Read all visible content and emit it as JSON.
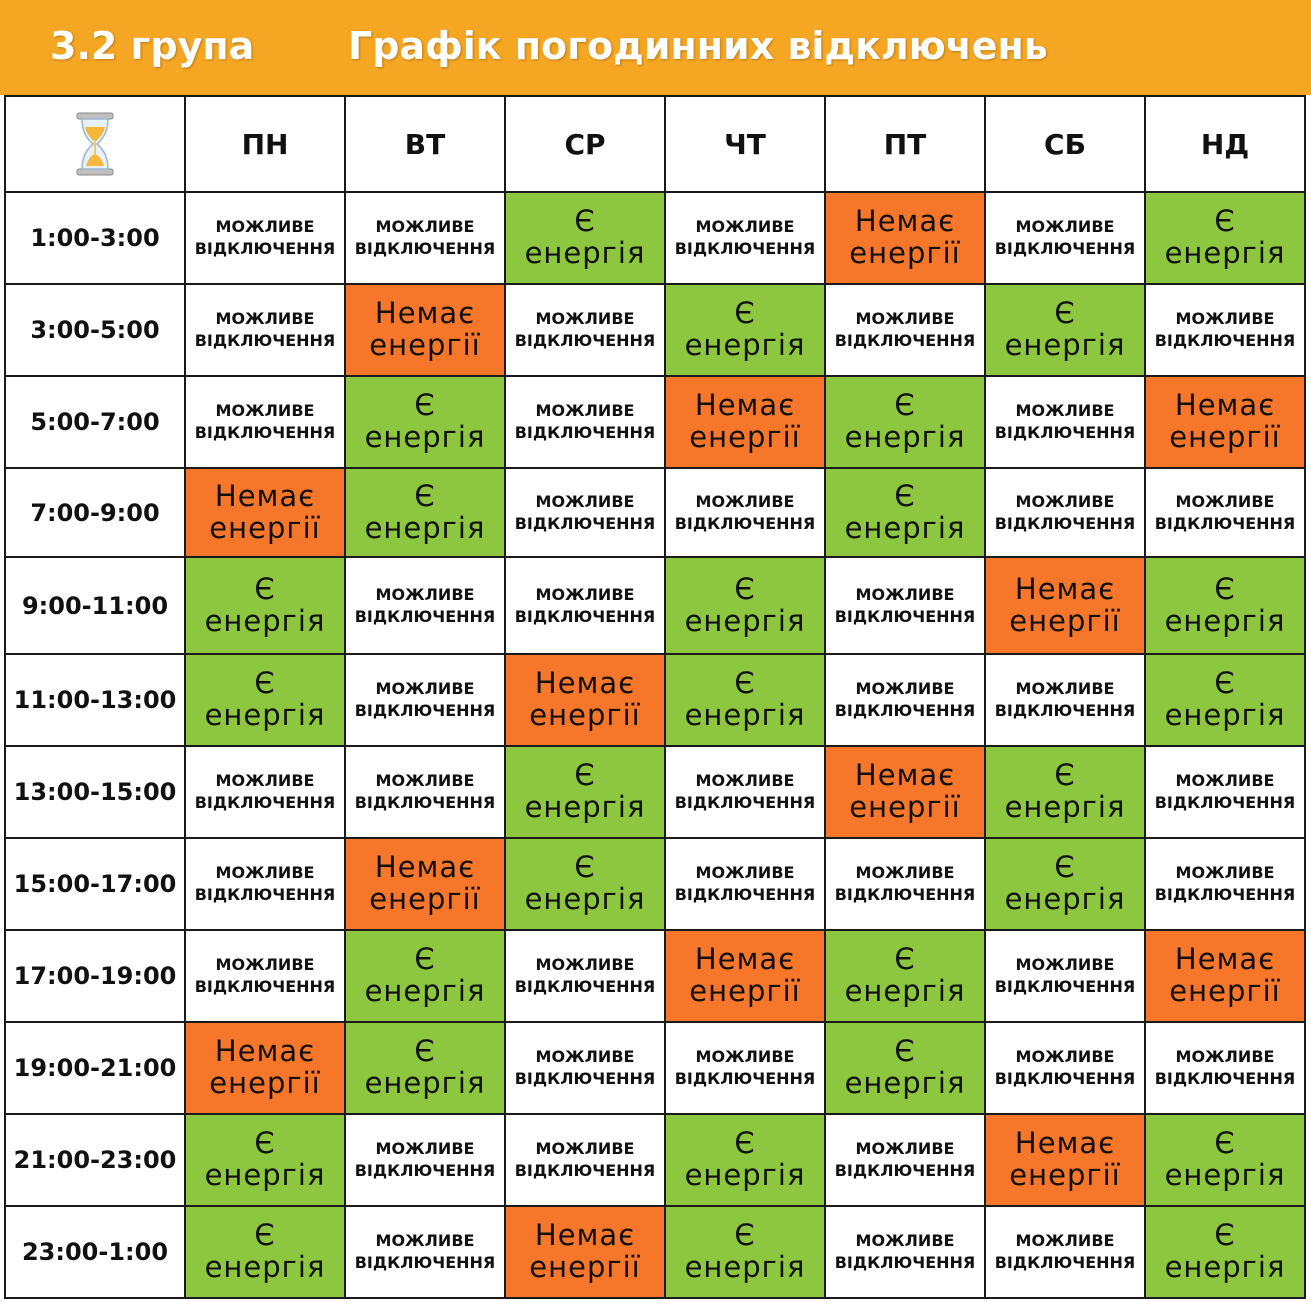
{
  "header": {
    "group": "3.2 група",
    "title": "Графік погодинних відключень"
  },
  "colors": {
    "header": "#f5a623",
    "on": "#8dc63f",
    "off": "#f7772a",
    "maybe": "#ffffff"
  },
  "corner_icon": "hourglass-icon",
  "days": [
    "ПН",
    "ВТ",
    "СР",
    "ЧТ",
    "ПТ",
    "СБ",
    "НД"
  ],
  "statuses": {
    "maybe": {
      "line1": "МОЖЛИВЕ",
      "line2": "ВІДКЛЮЧЕННЯ"
    },
    "on": {
      "line1": "Є",
      "line2": "енергія"
    },
    "off": {
      "line1": "Немає",
      "line2": "енергії"
    }
  },
  "rows": [
    {
      "time": "1:00-3:00",
      "cells": [
        "maybe",
        "maybe",
        "on",
        "maybe",
        "off",
        "maybe",
        "on"
      ]
    },
    {
      "time": "3:00-5:00",
      "cells": [
        "maybe",
        "off",
        "maybe",
        "on",
        "maybe",
        "on",
        "maybe"
      ]
    },
    {
      "time": "5:00-7:00",
      "cells": [
        "maybe",
        "on",
        "maybe",
        "off",
        "on",
        "maybe",
        "off"
      ]
    },
    {
      "time": "7:00-9:00",
      "cells": [
        "off",
        "on",
        "maybe",
        "maybe",
        "on",
        "maybe",
        "maybe"
      ]
    },
    {
      "time": "9:00-11:00",
      "cells": [
        "on",
        "maybe",
        "maybe",
        "on",
        "maybe",
        "off",
        "on"
      ]
    },
    {
      "time": "11:00-13:00",
      "cells": [
        "on",
        "maybe",
        "off",
        "on",
        "maybe",
        "maybe",
        "on"
      ]
    },
    {
      "time": "13:00-15:00",
      "cells": [
        "maybe",
        "maybe",
        "on",
        "maybe",
        "off",
        "on",
        "maybe"
      ]
    },
    {
      "time": "15:00-17:00",
      "cells": [
        "maybe",
        "off",
        "on",
        "maybe",
        "maybe",
        "on",
        "maybe"
      ]
    },
    {
      "time": "17:00-19:00",
      "cells": [
        "maybe",
        "on",
        "maybe",
        "off",
        "on",
        "maybe",
        "off"
      ]
    },
    {
      "time": "19:00-21:00",
      "cells": [
        "off",
        "on",
        "maybe",
        "maybe",
        "on",
        "maybe",
        "maybe"
      ]
    },
    {
      "time": "21:00-23:00",
      "cells": [
        "on",
        "maybe",
        "maybe",
        "on",
        "maybe",
        "off",
        "on"
      ]
    },
    {
      "time": "23:00-1:00",
      "cells": [
        "on",
        "maybe",
        "off",
        "on",
        "maybe",
        "maybe",
        "on"
      ]
    }
  ]
}
